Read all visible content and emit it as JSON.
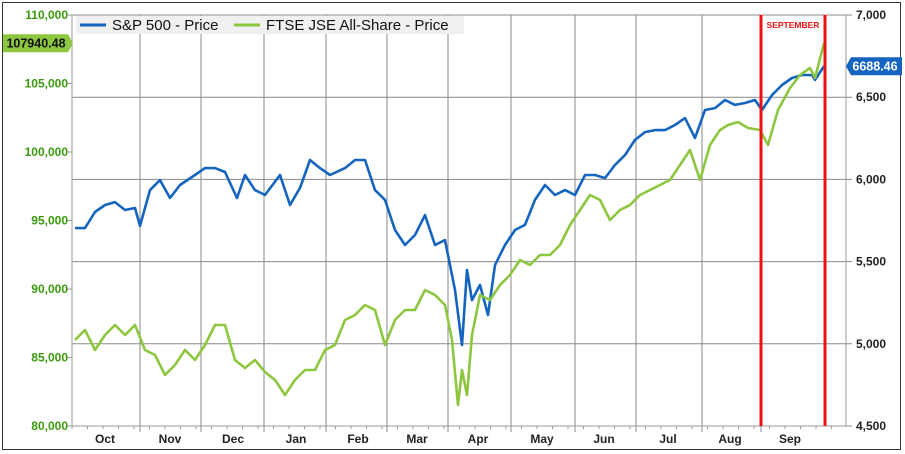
{
  "chart_data": {
    "type": "line",
    "legend": {
      "position": "top-left"
    },
    "grid": true,
    "x_axis": {
      "unit": "days from start",
      "range": [
        0,
        387
      ],
      "month_labels": [
        {
          "label": "Oct",
          "day": 16.5
        },
        {
          "label": "Nov",
          "day": 49
        },
        {
          "label": "Dec",
          "day": 80.5
        },
        {
          "label": "Jan",
          "day": 112
        },
        {
          "label": "Feb",
          "day": 143
        },
        {
          "label": "Mar",
          "day": 172.5
        },
        {
          "label": "Apr",
          "day": 203
        },
        {
          "label": "May",
          "day": 235
        },
        {
          "label": "Jun",
          "day": 266
        },
        {
          "label": "Jul",
          "day": 298
        },
        {
          "label": "Aug",
          "day": 329
        },
        {
          "label": "Sep",
          "day": 359
        }
      ],
      "month_boundaries": [
        34,
        64.5,
        96,
        127,
        157.5,
        188,
        219.5,
        251.5,
        282,
        315,
        344.5
      ]
    },
    "left_axis": {
      "range": [
        80000,
        110000
      ],
      "ticks": [
        "80,000",
        "85,000",
        "90,000",
        "95,000",
        "100,000",
        "105,000",
        "110,000"
      ],
      "tick_values": [
        80000,
        85000,
        90000,
        95000,
        100000,
        105000,
        110000
      ],
      "color": "#3a9a0e"
    },
    "right_axis": {
      "range": [
        4500,
        7000
      ],
      "ticks": [
        "4,500",
        "5,000",
        "5,500",
        "6,000",
        "6,500",
        "7,000"
      ],
      "tick_values": [
        4500,
        5000,
        5500,
        6000,
        6500,
        7000
      ]
    },
    "annotation": {
      "label": "SEPTEMBER",
      "start_day": 344.5,
      "end_day": 376.5,
      "color": "#ee1111"
    },
    "series": [
      {
        "name": "S&P 500 - Price",
        "axis": "right",
        "color": "#1565c0",
        "last_value_label": "6688.46",
        "points": [
          [
            1.5,
            5704
          ],
          [
            6.5,
            5704
          ],
          [
            11.5,
            5802
          ],
          [
            16.5,
            5844
          ],
          [
            21.5,
            5862
          ],
          [
            26.5,
            5814
          ],
          [
            31.5,
            5826
          ],
          [
            34,
            5717
          ],
          [
            39,
            5935
          ],
          [
            44,
            5996
          ],
          [
            49,
            5887
          ],
          [
            54,
            5966
          ],
          [
            61.5,
            6027
          ],
          [
            66.5,
            6069
          ],
          [
            71.5,
            6069
          ],
          [
            76.5,
            6045
          ],
          [
            82.5,
            5887
          ],
          [
            86.5,
            6027
          ],
          [
            91.5,
            5935
          ],
          [
            96.5,
            5905
          ],
          [
            104,
            6027
          ],
          [
            109,
            5844
          ],
          [
            114,
            5948
          ],
          [
            119,
            6118
          ],
          [
            124,
            6069
          ],
          [
            129,
            6027
          ],
          [
            136.5,
            6069
          ],
          [
            141.5,
            6118
          ],
          [
            146.5,
            6118
          ],
          [
            151.5,
            5935
          ],
          [
            156.5,
            5875
          ],
          [
            161.5,
            5692
          ],
          [
            166.5,
            5601
          ],
          [
            171.5,
            5662
          ],
          [
            176.5,
            5783
          ],
          [
            181.5,
            5601
          ],
          [
            186.5,
            5631
          ],
          [
            191.5,
            5327
          ],
          [
            195,
            4993
          ],
          [
            197.5,
            5449
          ],
          [
            200,
            5266
          ],
          [
            204,
            5358
          ],
          [
            208,
            5175
          ],
          [
            211.5,
            5479
          ],
          [
            216.5,
            5601
          ],
          [
            221.5,
            5692
          ],
          [
            226.5,
            5723
          ],
          [
            231.5,
            5875
          ],
          [
            236.5,
            5966
          ],
          [
            241.5,
            5905
          ],
          [
            246.5,
            5935
          ],
          [
            251.5,
            5905
          ],
          [
            256.5,
            6027
          ],
          [
            261.5,
            6027
          ],
          [
            266.5,
            6008
          ],
          [
            271.5,
            6088
          ],
          [
            276.5,
            6148
          ],
          [
            281.5,
            6240
          ],
          [
            286.5,
            6288
          ],
          [
            291.5,
            6300
          ],
          [
            296.5,
            6300
          ],
          [
            301.5,
            6331
          ],
          [
            306.5,
            6373
          ],
          [
            311.5,
            6252
          ],
          [
            316.5,
            6422
          ],
          [
            321.5,
            6434
          ],
          [
            326.5,
            6483
          ],
          [
            331.5,
            6453
          ],
          [
            336.5,
            6465
          ],
          [
            341.5,
            6483
          ],
          [
            345,
            6422
          ],
          [
            350,
            6513
          ],
          [
            355,
            6574
          ],
          [
            360,
            6617
          ],
          [
            365,
            6635
          ],
          [
            370,
            6635
          ],
          [
            371.5,
            6605
          ],
          [
            376,
            6688.46
          ]
        ]
      },
      {
        "name": "FTSE JSE All-Share - Price",
        "axis": "left",
        "color": "#8dc63f",
        "last_value_label": "107940.48",
        "points": [
          [
            1.5,
            86275
          ],
          [
            6.5,
            87005
          ],
          [
            11.5,
            85545
          ],
          [
            16.5,
            86640
          ],
          [
            21.5,
            87370
          ],
          [
            26.5,
            86640
          ],
          [
            31.5,
            87370
          ],
          [
            36.5,
            85545
          ],
          [
            41.5,
            85180
          ],
          [
            46.5,
            83720
          ],
          [
            51.5,
            84450
          ],
          [
            56.5,
            85545
          ],
          [
            61.5,
            84815
          ],
          [
            66.5,
            85910
          ],
          [
            71.5,
            87370
          ],
          [
            76.5,
            87370
          ],
          [
            81.5,
            84815
          ],
          [
            86.5,
            84231
          ],
          [
            91.5,
            84815
          ],
          [
            96.5,
            83939
          ],
          [
            101.5,
            83355
          ],
          [
            106.5,
            82260
          ],
          [
            111.5,
            83355
          ],
          [
            116.5,
            84085
          ],
          [
            121.5,
            84085
          ],
          [
            126.5,
            85545
          ],
          [
            131.5,
            85910
          ],
          [
            136.5,
            87735
          ],
          [
            141.5,
            88100
          ],
          [
            146.5,
            88830
          ],
          [
            151.5,
            88465
          ],
          [
            156.5,
            85910
          ],
          [
            161.5,
            87735
          ],
          [
            166.5,
            88465
          ],
          [
            171.5,
            88465
          ],
          [
            176.5,
            89925
          ],
          [
            181.5,
            89560
          ],
          [
            186.5,
            88830
          ],
          [
            190,
            86275
          ],
          [
            193,
            81530
          ],
          [
            195,
            84085
          ],
          [
            197.5,
            82260
          ],
          [
            200,
            86640
          ],
          [
            204,
            89560
          ],
          [
            209,
            89195
          ],
          [
            214,
            90290
          ],
          [
            219,
            91020
          ],
          [
            224,
            92115
          ],
          [
            229,
            91750
          ],
          [
            234,
            92480
          ],
          [
            239,
            92480
          ],
          [
            244,
            93210
          ],
          [
            249,
            94670
          ],
          [
            254,
            95765
          ],
          [
            259,
            96860
          ],
          [
            264,
            96495
          ],
          [
            269,
            95035
          ],
          [
            274,
            95765
          ],
          [
            279,
            96130
          ],
          [
            284,
            96860
          ],
          [
            289,
            97225
          ],
          [
            294,
            97590
          ],
          [
            299,
            97955
          ],
          [
            304,
            99050
          ],
          [
            309,
            100145
          ],
          [
            314,
            97955
          ],
          [
            319,
            100510
          ],
          [
            324,
            101605
          ],
          [
            328,
            101970
          ],
          [
            333,
            102189
          ],
          [
            338,
            101751
          ],
          [
            344,
            101605
          ],
          [
            348,
            100510
          ],
          [
            353,
            103065
          ],
          [
            359,
            104671
          ],
          [
            364,
            105620
          ],
          [
            369,
            106131
          ],
          [
            371.5,
            105401
          ],
          [
            376,
            107940.48
          ]
        ]
      }
    ]
  }
}
